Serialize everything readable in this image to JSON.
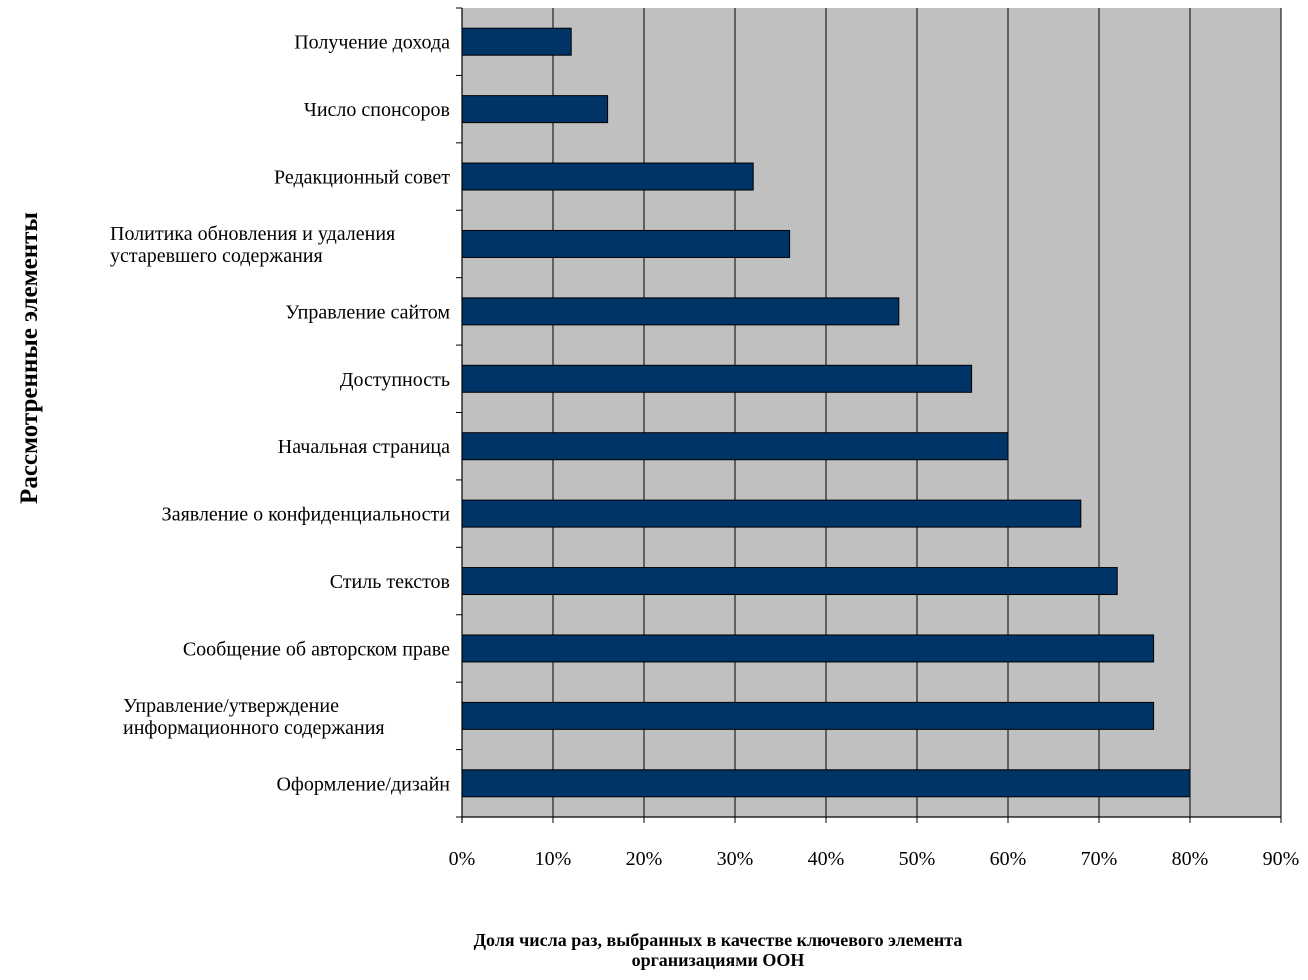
{
  "chart_data": {
    "type": "bar",
    "orientation": "horizontal",
    "categories": [
      "Получение дохода",
      "Число спонсоров",
      "Редакционный совет",
      "Политика обновления и удаления устаревшего содержания",
      "Управление сайтом",
      "Доступность",
      "Начальная страница",
      "Заявление о конфиденциальности",
      "Стиль текстов",
      "Сообщение об авторском праве",
      "Управление/утверждение информационного содержания",
      "Оформление/дизайн"
    ],
    "category_lines": [
      [
        "Получение дохода"
      ],
      [
        "Число спонсоров"
      ],
      [
        "Редакционный совет"
      ],
      [
        "Политика обновления и удаления",
        "устаревшего содержания"
      ],
      [
        "Управление сайтом"
      ],
      [
        "Доступность"
      ],
      [
        "Начальная страница"
      ],
      [
        "Заявление о конфиденциальности"
      ],
      [
        "Стиль текстов"
      ],
      [
        "Сообщение об авторском праве"
      ],
      [
        "Управление/утверждение",
        "информационного содержания"
      ],
      [
        "Оформление/дизайн"
      ]
    ],
    "values": [
      12,
      16,
      32,
      36,
      48,
      56,
      60,
      68,
      72,
      76,
      76,
      80
    ],
    "xlim": [
      0,
      90
    ],
    "xticks": [
      0,
      10,
      20,
      30,
      40,
      50,
      60,
      70,
      80,
      90
    ],
    "xtick_labels": [
      "0%",
      "10%",
      "20%",
      "30%",
      "40%",
      "50%",
      "60%",
      "70%",
      "80%",
      "90%"
    ],
    "xlabel": "Доля числа раз, выбранных в качестве ключевого элемента организациями ООН",
    "xlabel_lines": [
      "Доля числа раз, выбранных в качестве ключевого элемента",
      "организациями ООН"
    ],
    "ylabel": "Рассмотренные элементы",
    "grid": "vertical",
    "legend": "none",
    "colors": {
      "bar_fill": "#003366",
      "bar_stroke": "#000000",
      "plot_background": "#c0c0c0",
      "grid_line": "#000000"
    }
  }
}
